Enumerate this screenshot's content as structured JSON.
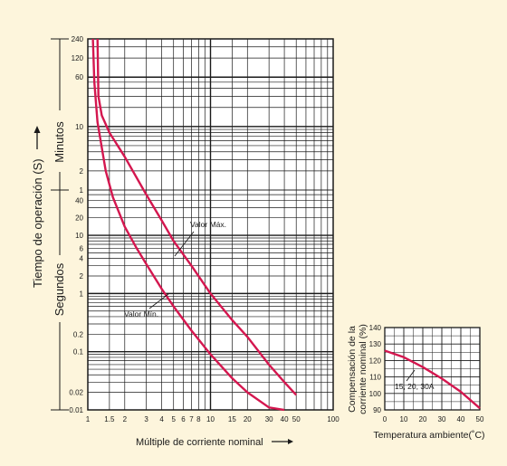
{
  "colors": {
    "background": "#fdf5dc",
    "grid": "#1a1a1a",
    "curve": "#d4174f"
  },
  "chart_data": [
    {
      "type": "line",
      "xscale": "log",
      "yscale": "log",
      "xlabel": "Múltiple de corriente nominal",
      "ylabel": "Tiempo de operación (S)",
      "ylabel_minutes": "Minutos",
      "ylabel_seconds": "Segundos",
      "xlim": [
        1,
        100
      ],
      "ticks": {
        "x": [
          {
            "v": 1,
            "t": "1"
          },
          {
            "v": 1.5,
            "t": "1.5"
          },
          {
            "v": 2,
            "t": "2"
          },
          {
            "v": 3,
            "t": "3"
          },
          {
            "v": 4,
            "t": "4"
          },
          {
            "v": 5,
            "t": "5"
          },
          {
            "v": 6,
            "t": "6"
          },
          {
            "v": 7,
            "t": "7"
          },
          {
            "v": 8,
            "t": "8"
          },
          {
            "v": 10,
            "t": "10"
          },
          {
            "v": 15,
            "t": "15"
          },
          {
            "v": 20,
            "t": "20"
          },
          {
            "v": 30,
            "t": "30"
          },
          {
            "v": 40,
            "t": "40"
          },
          {
            "v": 50,
            "t": "50"
          },
          {
            "v": 100,
            "t": "100"
          }
        ],
        "y_minutes": [
          {
            "v": 240,
            "t": "240"
          },
          {
            "v": 120,
            "t": "120"
          },
          {
            "v": 60,
            "t": "60"
          },
          {
            "v": 10,
            "t": "10"
          },
          {
            "v": 2,
            "t": "2"
          },
          {
            "v": 1,
            "t": "1"
          }
        ],
        "y_seconds": [
          {
            "v": 40,
            "t": "40"
          },
          {
            "v": 20,
            "t": "20"
          },
          {
            "v": 10,
            "t": "10"
          },
          {
            "v": 6,
            "t": "6"
          },
          {
            "v": 4,
            "t": "4"
          },
          {
            "v": 2,
            "t": "2"
          },
          {
            "v": 1,
            "t": "1"
          },
          {
            "v": 0.2,
            "t": "0.2"
          },
          {
            "v": 0.1,
            "t": "0.1"
          },
          {
            "v": 0.02,
            "t": "0.02"
          },
          {
            "v": 0.01,
            "t": "0.01"
          }
        ]
      },
      "series": [
        {
          "name": "Valor Máx.",
          "points": [
            [
              1.2,
              14400
            ],
            [
              1.22,
              1800
            ],
            [
              1.3,
              900
            ],
            [
              1.5,
              480
            ],
            [
              2,
              200
            ],
            [
              3,
              50
            ],
            [
              4,
              18
            ],
            [
              5,
              8
            ],
            [
              7,
              3
            ],
            [
              10,
              1
            ],
            [
              15,
              0.35
            ],
            [
              20,
              0.18
            ],
            [
              30,
              0.06
            ],
            [
              40,
              0.03
            ],
            [
              50,
              0.018
            ]
          ]
        },
        {
          "name": "Valor Mín.",
          "points": [
            [
              1.1,
              14400
            ],
            [
              1.13,
              3000
            ],
            [
              1.2,
              700
            ],
            [
              1.4,
              120
            ],
            [
              1.6,
              45
            ],
            [
              2,
              14
            ],
            [
              2.5,
              6
            ],
            [
              3,
              3.2
            ],
            [
              4,
              1.2
            ],
            [
              5,
              0.6
            ],
            [
              7,
              0.23
            ],
            [
              10,
              0.09
            ],
            [
              15,
              0.035
            ],
            [
              20,
              0.02
            ],
            [
              30,
              0.011
            ],
            [
              40,
              0.0085
            ]
          ]
        }
      ],
      "annotations": [
        "Valor Máx.",
        "Valor Mín."
      ]
    },
    {
      "type": "line",
      "xlabel": "Temperatura ambiente(˚C)",
      "ylabel": "Compensación de la corriente nominal (%)",
      "ylabel_lines": [
        "Compensación de la",
        "corriente nominal (%)"
      ],
      "xlim": [
        0,
        50
      ],
      "ylim": [
        90,
        140
      ],
      "xticks": [
        "0",
        "10",
        "20",
        "30",
        "40",
        "50"
      ],
      "yticks": [
        "90",
        "100",
        "110",
        "120",
        "130",
        "140"
      ],
      "series": [
        {
          "name": "15, 20, 30A",
          "x": [
            0,
            10,
            20,
            30,
            40,
            50
          ],
          "y": [
            126,
            122,
            116,
            109,
            101,
            91
          ]
        }
      ]
    }
  ]
}
